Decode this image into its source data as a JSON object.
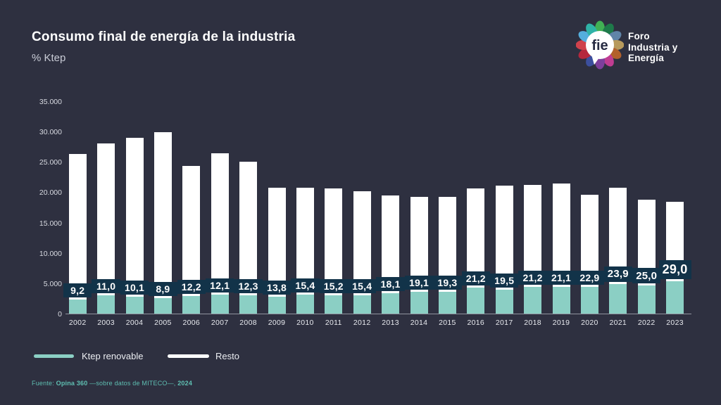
{
  "header": {
    "title": "Consumo final de energía de la industria",
    "subtitle": "% Ktep"
  },
  "logo": {
    "monogram": "fie",
    "line1": "Foro",
    "line2": "Industria y",
    "line3": "Energía",
    "petal_colors": [
      "#41b054",
      "#1e7a4a",
      "#6084a8",
      "#b79a5c",
      "#b2612c",
      "#c03d92",
      "#7e3f9c",
      "#3c4f9e",
      "#b5273d",
      "#d0424c",
      "#54aedd",
      "#2fb3a7"
    ]
  },
  "chart_data": {
    "type": "bar",
    "stacked": true,
    "title": "Consumo final de energía de la industria",
    "ylabel": "% Ktep",
    "xlabel": "",
    "grid": false,
    "legend_position": "bottom-left",
    "categories": [
      "2002",
      "2003",
      "2004",
      "2005",
      "2006",
      "2007",
      "2008",
      "2009",
      "2010",
      "2011",
      "2012",
      "2013",
      "2014",
      "2015",
      "2016",
      "2017",
      "2018",
      "2019",
      "2020",
      "2021",
      "2022",
      "2023"
    ],
    "series": [
      {
        "name": "Ktep renovable",
        "color": "#8bcfc4",
        "values": [
          2400,
          3100,
          2900,
          2700,
          3000,
          3200,
          3100,
          2900,
          3200,
          3100,
          3100,
          3500,
          3700,
          3700,
          4400,
          4100,
          4500,
          4500,
          4500,
          5000,
          4700,
          5400
        ]
      },
      {
        "name": "Resto",
        "color": "#ffffff",
        "values": [
          24000,
          25100,
          26200,
          27300,
          21500,
          23300,
          22000,
          18000,
          17700,
          17600,
          17200,
          16100,
          15600,
          15700,
          16300,
          17100,
          16800,
          17000,
          15200,
          15900,
          14200,
          13100
        ]
      }
    ],
    "totals_ktep": [
      26400,
      28200,
      29100,
      30000,
      24500,
      26500,
      25100,
      20900,
      20900,
      20700,
      20300,
      19600,
      19300,
      19400,
      20700,
      21200,
      21300,
      21500,
      19700,
      20900,
      18900,
      18500
    ],
    "pct_renovable_labels": [
      "9,2",
      "11,0",
      "10,1",
      "8,9",
      "12,2",
      "12,1",
      "12,3",
      "13,8",
      "15,4",
      "15,2",
      "15,4",
      "18,1",
      "19,1",
      "19,3",
      "21,2",
      "19,5",
      "21,2",
      "21,1",
      "22,9",
      "23,9",
      "25,0",
      "29,0"
    ],
    "ylim": [
      0,
      35000
    ],
    "ytick_labels": [
      "35.000",
      "30.000",
      "25.000",
      "20.000",
      "15.000",
      "10.000",
      "5.000",
      "0"
    ]
  },
  "legend": {
    "items": [
      {
        "label": "Ktep renovable",
        "color": "#8bcfc4"
      },
      {
        "label": "Resto",
        "color": "#ffffff"
      }
    ]
  },
  "source": {
    "prefix": "Fuente: ",
    "bold1": "Opina 360",
    "middle": " —sobre datos de MITECO—, ",
    "bold2": "2024"
  },
  "colors": {
    "background": "#2e3040",
    "label_box": "#123349",
    "renovable": "#8bcfc4",
    "resto": "#ffffff",
    "source_text": "#5fbfb2"
  }
}
